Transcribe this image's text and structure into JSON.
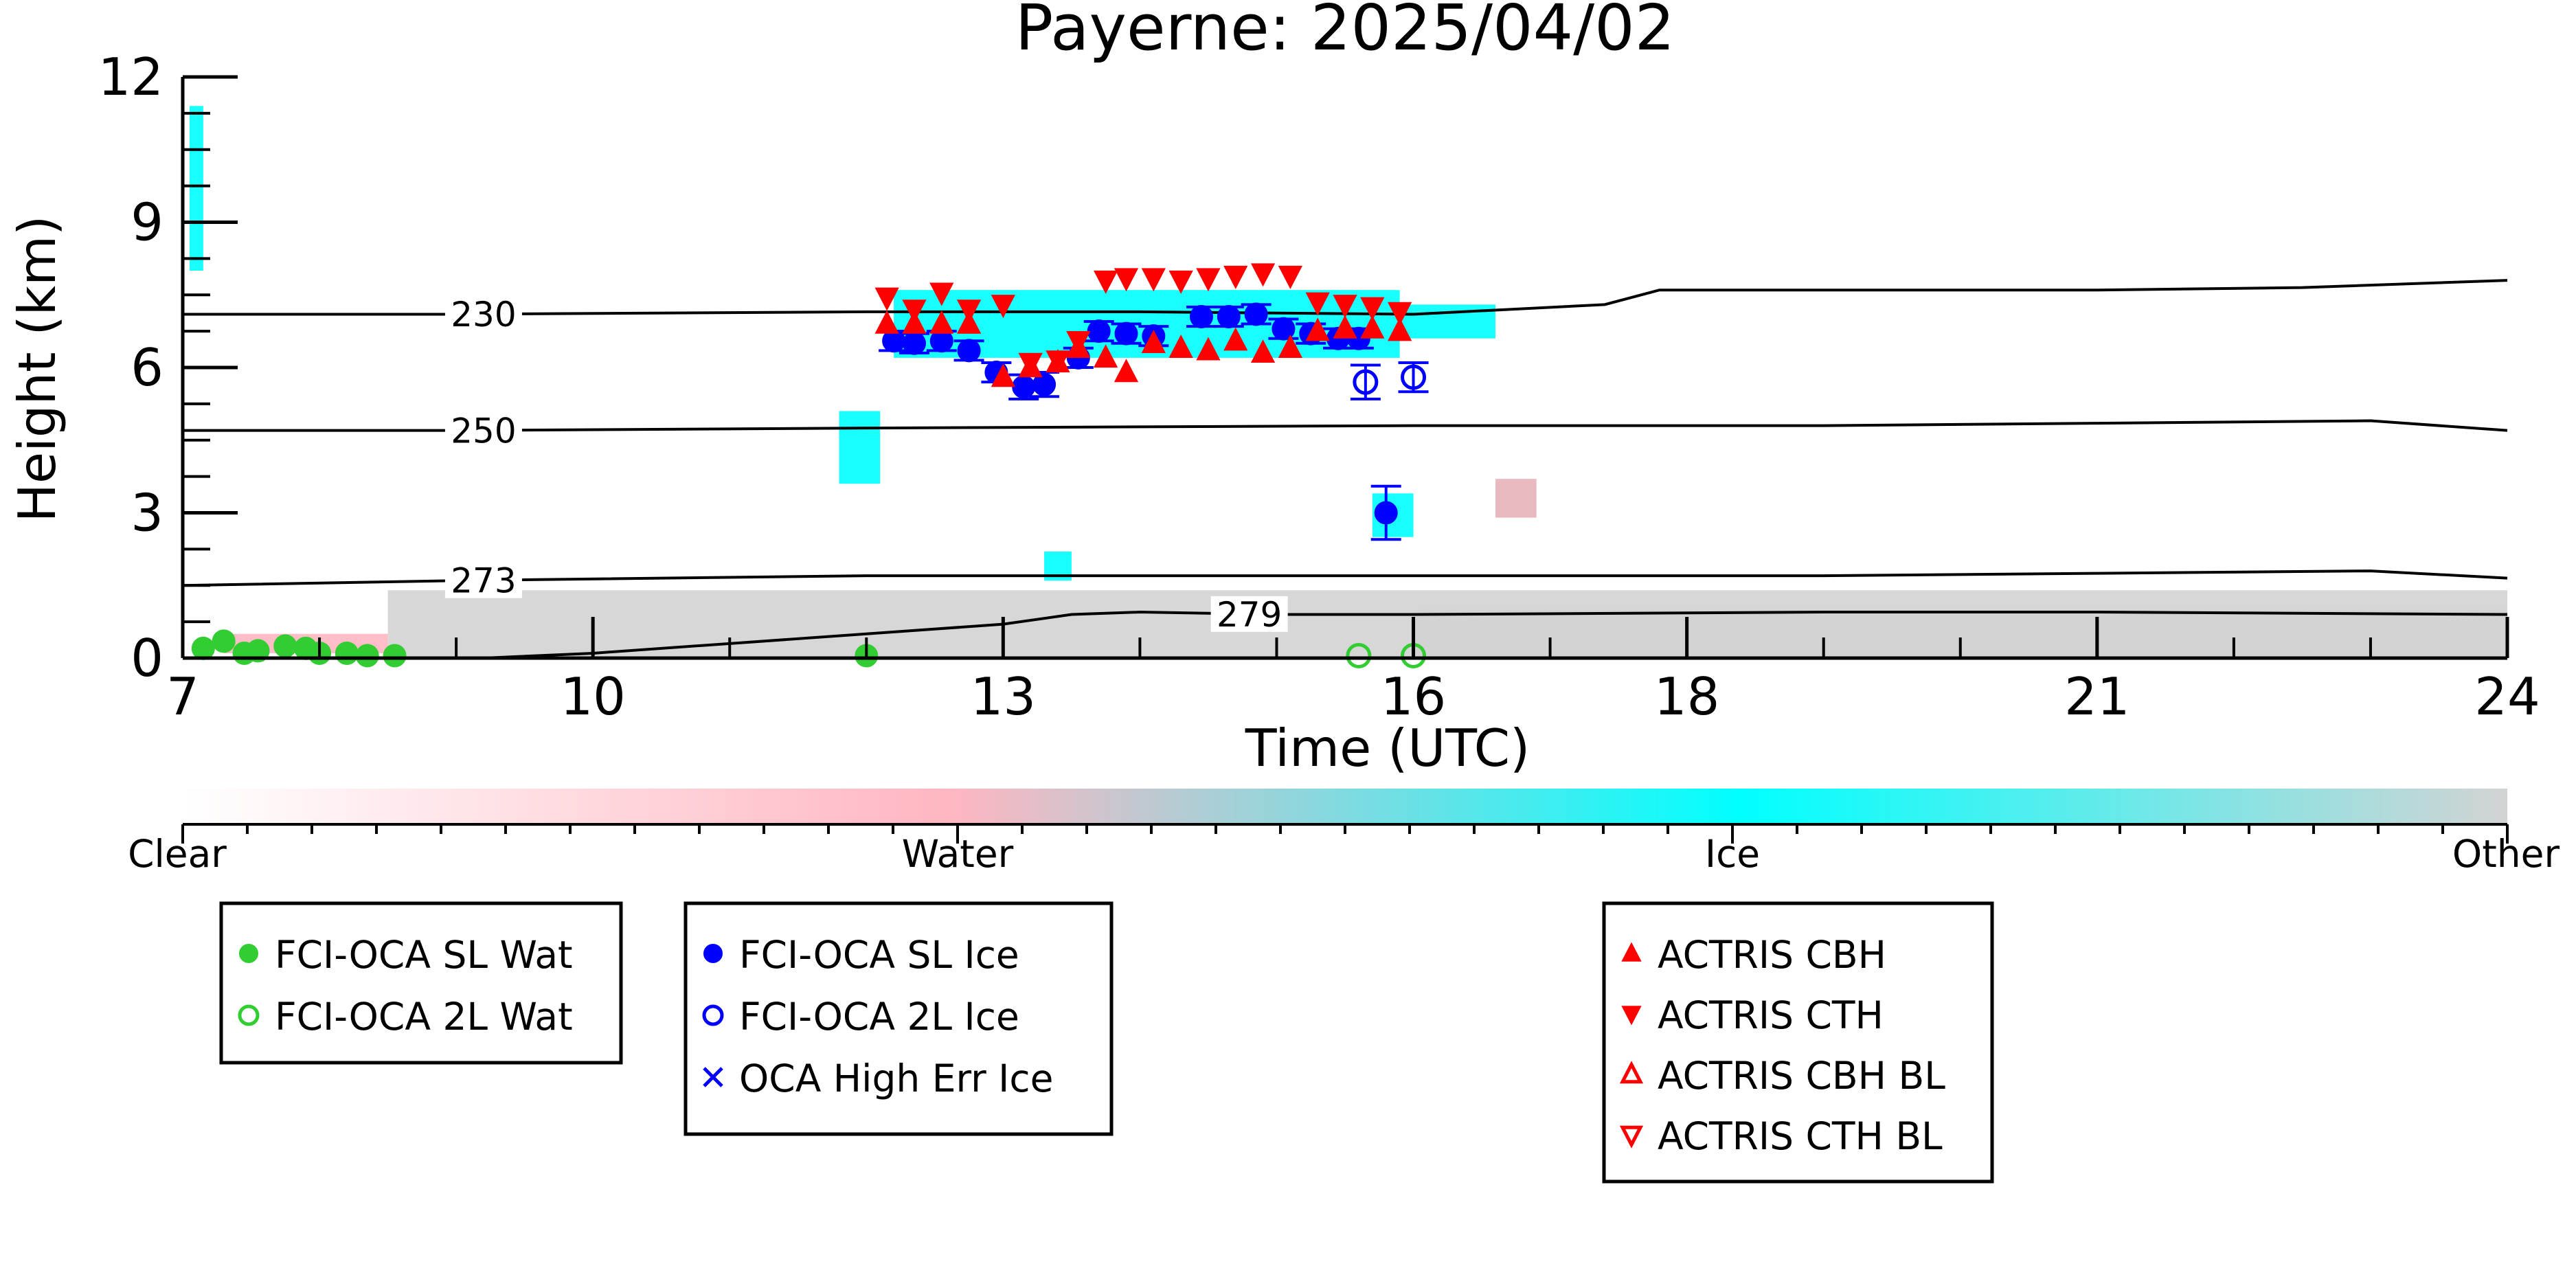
{
  "chart_data": {
    "type": "scatter",
    "title": "Payerne: 2025/04/02",
    "xlabel": "Time (UTC)",
    "ylabel": "Height (km)",
    "xlim": [
      7,
      24
    ],
    "ylim": [
      0,
      12
    ],
    "x_ticks": [
      7,
      10,
      13,
      16,
      18,
      21,
      24
    ],
    "x_tick_labels": [
      "7",
      "10",
      "13",
      "16",
      "18",
      "21",
      "24"
    ],
    "y_ticks": [
      0,
      3,
      6,
      9,
      12
    ],
    "y_tick_labels": [
      "0",
      "3",
      "6",
      "9",
      "12"
    ],
    "grid": false,
    "colorbar": {
      "labels": [
        "Clear",
        "Water",
        "Ice",
        "Other"
      ],
      "colors": [
        "#ffffff",
        "#ffb6c1",
        "#00ffff",
        "#d3d3d3"
      ]
    },
    "isotherms": [
      {
        "label": "230",
        "label_x": 9.2,
        "x": [
          7,
          9,
          12,
          14,
          16,
          17.4,
          17.8,
          19,
          21,
          22.5,
          24
        ],
        "y": [
          7.1,
          7.1,
          7.15,
          7.15,
          7.1,
          7.3,
          7.6,
          7.6,
          7.6,
          7.65,
          7.8
        ]
      },
      {
        "label": "250",
        "label_x": 9.2,
        "x": [
          7,
          9,
          12,
          16,
          19,
          21,
          23,
          24
        ],
        "y": [
          4.7,
          4.7,
          4.75,
          4.8,
          4.8,
          4.85,
          4.9,
          4.7
        ]
      },
      {
        "label": "273",
        "label_x": 9.2,
        "x": [
          7,
          9,
          12,
          16,
          19,
          21,
          23,
          24
        ],
        "y": [
          1.5,
          1.6,
          1.7,
          1.7,
          1.7,
          1.75,
          1.8,
          1.65
        ]
      },
      {
        "label": "279",
        "label_x": 14.8,
        "x": [
          9.2,
          10,
          11,
          12,
          13,
          13.5,
          14,
          15,
          16,
          19,
          21,
          24
        ],
        "y": [
          0.0,
          0.1,
          0.3,
          0.5,
          0.7,
          0.9,
          0.95,
          0.9,
          0.9,
          0.95,
          0.95,
          0.9
        ]
      }
    ],
    "cloud_fields": [
      {
        "class": "Other",
        "color": "#d3d3d3",
        "x0": 8.5,
        "x1": 24,
        "base": 0,
        "top": 1.4
      },
      {
        "class": "Other",
        "color": "#d3d3d3",
        "x0": 16,
        "x1": 24,
        "base": 0,
        "top": 1.0
      },
      {
        "class": "Ice",
        "color": "#00ffff",
        "x0": 12.2,
        "x1": 15.9,
        "base": 6.2,
        "top": 7.6
      },
      {
        "class": "Ice",
        "color": "#00ffff",
        "x0": 15.9,
        "x1": 16.6,
        "base": 6.6,
        "top": 7.3
      },
      {
        "class": "Ice",
        "color": "#00ffff",
        "x0": 11.8,
        "x1": 12.1,
        "base": 3.6,
        "top": 5.1
      },
      {
        "class": "Ice",
        "color": "#00ffff",
        "x0": 13.3,
        "x1": 13.5,
        "base": 1.6,
        "top": 2.2
      },
      {
        "class": "Ice",
        "color": "#00ffff",
        "x0": 15.7,
        "x1": 16.0,
        "base": 2.5,
        "top": 3.4
      },
      {
        "class": "Ice",
        "color": "#00ffff",
        "x0": 7.05,
        "x1": 7.15,
        "base": 8.0,
        "top": 11.4
      },
      {
        "class": "Water",
        "color": "#ffb6c1",
        "x0": 7.3,
        "x1": 8.5,
        "base": 0.1,
        "top": 0.5
      },
      {
        "class": "Water",
        "color": "#e8b0b8",
        "x0": 16.6,
        "x1": 16.9,
        "base": 2.9,
        "top": 3.7
      }
    ],
    "series": [
      {
        "name": "FCI-OCA SL Wat",
        "marker": "filled-circle",
        "color": "#32cd32",
        "x": [
          7.15,
          7.3,
          7.45,
          7.55,
          7.75,
          7.9,
          8.0,
          8.2,
          8.35,
          8.55,
          12.0
        ],
        "y": [
          0.2,
          0.35,
          0.1,
          0.15,
          0.25,
          0.2,
          0.1,
          0.1,
          0.05,
          0.05,
          0.05
        ]
      },
      {
        "name": "FCI-OCA 2L Wat",
        "marker": "open-circle",
        "color": "#32cd32",
        "x": [
          15.6,
          16.0
        ],
        "y": [
          0.05,
          0.05
        ]
      },
      {
        "name": "FCI-OCA SL Ice",
        "marker": "filled-circle",
        "color": "#0000ff",
        "x": [
          12.2,
          12.35,
          12.55,
          12.75,
          12.95,
          13.15,
          13.3,
          13.55,
          13.7,
          13.9,
          14.1,
          14.45,
          14.65,
          14.85,
          15.05,
          15.25,
          15.45,
          15.6,
          15.8
        ],
        "y": [
          6.55,
          6.5,
          6.55,
          6.35,
          5.9,
          5.6,
          5.65,
          6.2,
          6.75,
          6.7,
          6.65,
          7.05,
          7.05,
          7.1,
          6.8,
          6.7,
          6.6,
          6.6,
          3.0
        ],
        "err": [
          0.2,
          0.2,
          0.2,
          0.2,
          0.2,
          0.25,
          0.25,
          0.2,
          0.2,
          0.2,
          0.2,
          0.2,
          0.2,
          0.2,
          0.2,
          0.2,
          0.2,
          0.2,
          0.55
        ]
      },
      {
        "name": "FCI-OCA 2L Ice",
        "marker": "open-circle",
        "color": "#0000ff",
        "x": [
          15.65,
          16.0
        ],
        "y": [
          5.7,
          5.8
        ],
        "err": [
          0.35,
          0.3
        ]
      },
      {
        "name": "OCA High Err Ice",
        "marker": "x",
        "color": "#0000ff",
        "x": [],
        "y": []
      },
      {
        "name": "ACTRIS CBH",
        "marker": "triangle-up",
        "color": "#ff0000",
        "x": [
          12.15,
          12.35,
          12.55,
          12.75,
          13.0,
          13.2,
          13.4,
          13.55,
          13.75,
          13.9,
          14.1,
          14.3,
          14.5,
          14.7,
          14.9,
          15.1,
          15.3,
          15.5,
          15.7,
          15.9
        ],
        "y": [
          6.9,
          6.9,
          6.9,
          6.9,
          5.8,
          6.0,
          6.1,
          6.4,
          6.2,
          5.9,
          6.5,
          6.4,
          6.35,
          6.55,
          6.3,
          6.4,
          6.75,
          6.8,
          6.8,
          6.75
        ]
      },
      {
        "name": "ACTRIS CTH",
        "marker": "triangle-down",
        "color": "#ff0000",
        "x": [
          12.15,
          12.35,
          12.55,
          12.75,
          13.0,
          13.2,
          13.4,
          13.55,
          13.75,
          13.9,
          14.1,
          14.3,
          14.5,
          14.7,
          14.9,
          15.1,
          15.3,
          15.5,
          15.7,
          15.9
        ],
        "y": [
          7.45,
          7.2,
          7.55,
          7.2,
          7.3,
          6.1,
          6.15,
          6.55,
          7.8,
          7.85,
          7.85,
          7.8,
          7.85,
          7.9,
          7.95,
          7.9,
          7.35,
          7.3,
          7.25,
          7.15
        ]
      },
      {
        "name": "ACTRIS CBH BL",
        "marker": "open-triangle-up",
        "color": "#ff0000",
        "x": [],
        "y": []
      },
      {
        "name": "ACTRIS CTH BL",
        "marker": "open-triangle-down",
        "color": "#ff0000",
        "x": [],
        "y": []
      }
    ],
    "legends": [
      {
        "entries": [
          "FCI-OCA SL Wat",
          "FCI-OCA 2L Wat"
        ]
      },
      {
        "entries": [
          "FCI-OCA SL Ice",
          "FCI-OCA 2L Ice",
          "OCA High Err Ice"
        ]
      },
      {
        "entries": [
          "ACTRIS CBH",
          "ACTRIS CTH",
          "ACTRIS CBH BL",
          "ACTRIS CTH BL"
        ]
      }
    ]
  }
}
